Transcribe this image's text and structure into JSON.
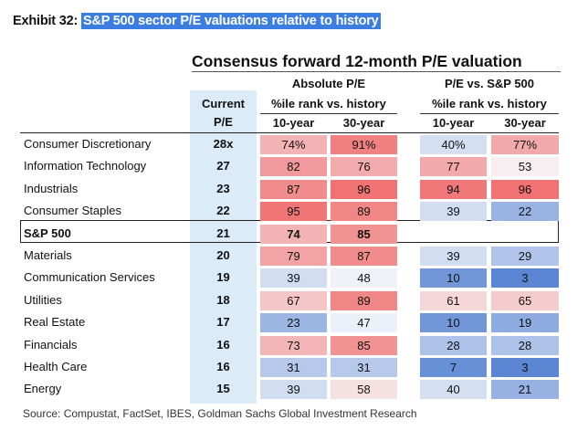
{
  "exhibit": {
    "label": "Exhibit 32:",
    "title": "S&P 500 sector P/E valuations relative to history"
  },
  "table_title": "Consensus forward 12-month P/E valuation",
  "group_absolute": "Absolute P/E",
  "group_relative": "P/E vs. S&P 500",
  "header": {
    "current_line1": "Current",
    "current_line2": "P/E",
    "pctile_abs": "%ile rank vs. history",
    "pctile_rel": "%ile rank vs. history",
    "abs_10": "10-year",
    "abs_30": "30-year",
    "rel_10": "10-year",
    "rel_30": "30-year"
  },
  "rows": [
    {
      "sector": "Consumer Discretionary",
      "current": "28x",
      "abs10": "74%",
      "abs30": "91%",
      "rel10": "40%",
      "rel30": "77%"
    },
    {
      "sector": "Information Technology",
      "current": "27",
      "abs10": "82",
      "abs30": "76",
      "rel10": "77",
      "rel30": "53"
    },
    {
      "sector": "Industrials",
      "current": "23",
      "abs10": "87",
      "abs30": "96",
      "rel10": "94",
      "rel30": "96"
    },
    {
      "sector": "Consumer Staples",
      "current": "22",
      "abs10": "95",
      "abs30": "89",
      "rel10": "39",
      "rel30": "22"
    },
    {
      "sector": "S&P 500",
      "current": "21",
      "abs10": "74",
      "abs30": "85",
      "rel10": "",
      "rel30": ""
    },
    {
      "sector": "Materials",
      "current": "20",
      "abs10": "79",
      "abs30": "87",
      "rel10": "39",
      "rel30": "29"
    },
    {
      "sector": "Communication Services",
      "current": "19",
      "abs10": "39",
      "abs30": "48",
      "rel10": "10",
      "rel30": "3"
    },
    {
      "sector": "Utilities",
      "current": "18",
      "abs10": "67",
      "abs30": "89",
      "rel10": "61",
      "rel30": "65"
    },
    {
      "sector": "Real Estate",
      "current": "17",
      "abs10": "23",
      "abs30": "47",
      "rel10": "10",
      "rel30": "19"
    },
    {
      "sector": "Financials",
      "current": "16",
      "abs10": "73",
      "abs30": "85",
      "rel10": "28",
      "rel30": "28"
    },
    {
      "sector": "Health Care",
      "current": "16",
      "abs10": "31",
      "abs30": "31",
      "rel10": "7",
      "rel30": "3"
    },
    {
      "sector": "Energy",
      "current": "15",
      "abs10": "39",
      "abs30": "58",
      "rel10": "40",
      "rel30": "21"
    }
  ],
  "colors": {
    "high_red": "#f07272",
    "mid_white": "#f6f7fa",
    "low_blue": "#5a86d3",
    "current_col_bg": "#dcebf8",
    "exhibit_highlight": "#3b7de0"
  },
  "source": "Source: Compustat, FactSet, IBES, Goldman Sachs Global Investment Research"
}
